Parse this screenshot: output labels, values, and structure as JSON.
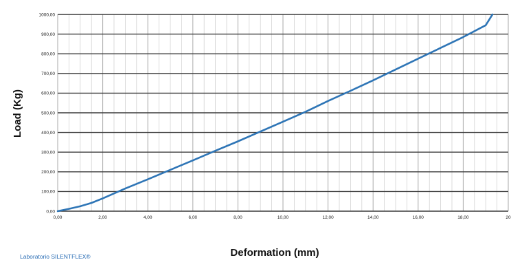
{
  "chart_data": {
    "type": "line",
    "xlabel": "Deformation (mm)",
    "ylabel": "Load (Kg)",
    "credit": "Laboratorio SILENTFLEX®",
    "xlim": [
      0,
      20
    ],
    "ylim": [
      0,
      1000
    ],
    "x_ticks": [
      "0,00",
      "2,00",
      "4,00",
      "6,00",
      "8,00",
      "10,00",
      "12,00",
      "14,00",
      "16,00",
      "18,00",
      "20"
    ],
    "y_ticks": [
      "0,00",
      "100,00",
      "200,00",
      "300,00",
      "400,00",
      "500,00",
      "600,00",
      "700,00",
      "800,00",
      "900,00",
      "1000,00"
    ],
    "grid": true,
    "line_color": "#2e75b6",
    "series": [
      {
        "x": [
          0,
          0.5,
          1.0,
          1.5,
          2.0,
          3.0,
          4.0,
          5.0,
          6.0,
          7.0,
          8.0,
          9.0,
          10.0,
          11.0,
          12.0,
          13.0,
          14.0,
          15.0,
          16.0,
          17.0,
          18.0,
          19.0,
          19.3
        ],
        "y": [
          0,
          12,
          25,
          42,
          65,
          115,
          162,
          210,
          258,
          307,
          355,
          405,
          455,
          505,
          560,
          612,
          665,
          720,
          775,
          830,
          885,
          945,
          1000
        ]
      }
    ]
  }
}
